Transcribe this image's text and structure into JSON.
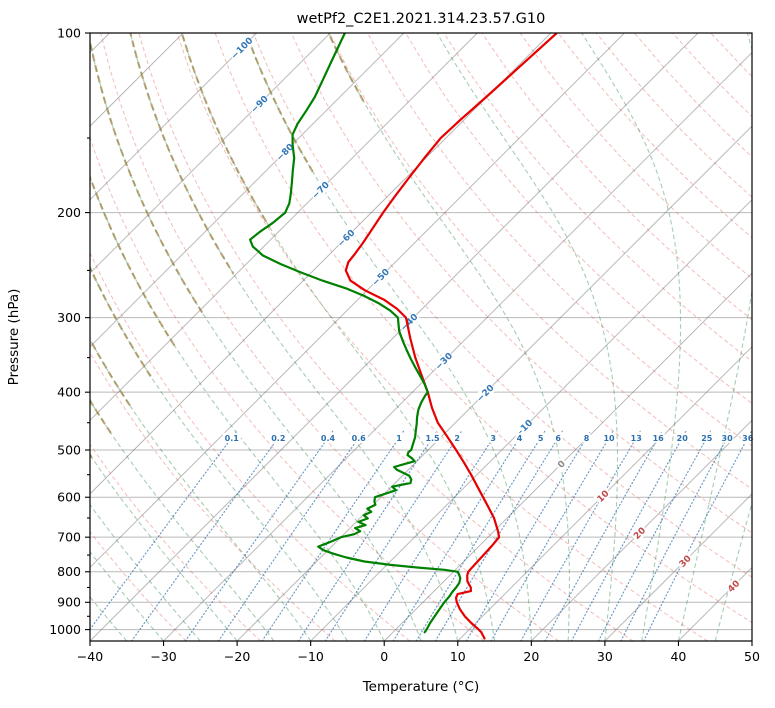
{
  "colors": {
    "grid": "rgba(100,100,100,0.45)",
    "dry_adiabat": "rgba(222,88,78,0.40)",
    "moist_adiabat": "rgba(38,128,62,0.40)",
    "moist_adiabat_cold_overlay": "rgba(158,134,72,0.72)",
    "mixing_ratio": "rgba(45,112,175,0.70)",
    "mixing_label": "#2d70af",
    "axis": "#000000",
    "background": "#ffffff"
  },
  "chart_data": {
    "type": "line",
    "subtype": "skew-t-log-p",
    "title": "wetPf2_C2E1.2021.314.23.57.G10",
    "xlabel": "Temperature (°C)",
    "ylabel": "Pressure (hPa)",
    "xlim": [
      -40,
      50
    ],
    "p_top": 100,
    "p_bottom": 1045,
    "skew_deg": 45,
    "x_ticks": [
      -40,
      -30,
      -20,
      -10,
      0,
      10,
      20,
      30,
      40,
      50
    ],
    "y_ticks": [
      100,
      200,
      300,
      400,
      500,
      600,
      700,
      800,
      900,
      1000
    ],
    "y_minor_ticks": [
      150,
      250,
      350,
      450,
      550,
      650,
      750,
      850,
      950
    ],
    "grid": true,
    "isotherms": {
      "start": -130,
      "end": 50,
      "step": 10
    },
    "isotherm_labels": [
      {
        "value": -100,
        "y": 48,
        "color": "#3478b6"
      },
      {
        "value": -90,
        "y": 104,
        "color": "#3478b6"
      },
      {
        "value": -80,
        "y": 152,
        "color": "#3478b6"
      },
      {
        "value": -70,
        "y": 190,
        "color": "#3478b6"
      },
      {
        "value": -60,
        "y": 238,
        "color": "#3478b6"
      },
      {
        "value": -50,
        "y": 277,
        "color": "#3478b6"
      },
      {
        "value": -40,
        "y": 322,
        "color": "#3478b6"
      },
      {
        "value": -30,
        "y": 361,
        "color": "#3478b6"
      },
      {
        "value": -20,
        "y": 393,
        "color": "#3478b6"
      },
      {
        "value": -10,
        "y": 428,
        "color": "#3478b6"
      },
      {
        "value": 0,
        "y": 464,
        "color": "#8a8a8a"
      },
      {
        "value": 10,
        "y": 496,
        "color": "#c04a4a"
      },
      {
        "value": 20,
        "y": 533,
        "color": "#c04a4a"
      },
      {
        "value": 30,
        "y": 561,
        "color": "#c04a4a"
      },
      {
        "value": 40,
        "y": 586,
        "color": "#c04a4a"
      }
    ],
    "dry_adiabats": {
      "start": -30,
      "end": 190,
      "step": 10
    },
    "moist_adiabats": {
      "start": -40,
      "end": 45,
      "step": 5
    },
    "mixing_ratio": {
      "values": [
        0.1,
        0.2,
        0.4,
        0.6,
        1,
        1.5,
        2,
        3,
        4,
        5,
        6,
        8,
        10,
        13,
        16,
        20,
        25,
        30,
        36
      ],
      "label_pressure": 477,
      "top_pressure": 462
    },
    "series": [
      {
        "name": "temperature",
        "color": "#e60000",
        "width": 2.2,
        "points": [
          [
            1035,
            13.3
          ],
          [
            1010,
            12.0
          ],
          [
            1000,
            11.3
          ],
          [
            975,
            9.4
          ],
          [
            950,
            7.6
          ],
          [
            925,
            6.0
          ],
          [
            900,
            4.6
          ],
          [
            885,
            3.9
          ],
          [
            872,
            3.6
          ],
          [
            862,
            5.0
          ],
          [
            850,
            4.5
          ],
          [
            830,
            3.2
          ],
          [
            812,
            2.4
          ],
          [
            800,
            2.0
          ],
          [
            775,
            1.9
          ],
          [
            750,
            1.8
          ],
          [
            725,
            1.7
          ],
          [
            700,
            1.5
          ],
          [
            685,
            0.6
          ],
          [
            670,
            -0.4
          ],
          [
            650,
            -1.8
          ],
          [
            625,
            -3.9
          ],
          [
            600,
            -6.1
          ],
          [
            575,
            -8.4
          ],
          [
            550,
            -10.8
          ],
          [
            525,
            -13.4
          ],
          [
            500,
            -16.2
          ],
          [
            475,
            -19.2
          ],
          [
            450,
            -22.4
          ],
          [
            425,
            -25.2
          ],
          [
            400,
            -27.9
          ],
          [
            375,
            -31.0
          ],
          [
            350,
            -34.3
          ],
          [
            325,
            -37.6
          ],
          [
            300,
            -41.0
          ],
          [
            290,
            -43.4
          ],
          [
            280,
            -46.4
          ],
          [
            270,
            -50.3
          ],
          [
            260,
            -53.6
          ],
          [
            250,
            -55.6
          ],
          [
            242,
            -56.4
          ],
          [
            235,
            -56.6
          ],
          [
            225,
            -57.0
          ],
          [
            212,
            -57.7
          ],
          [
            200,
            -58.4
          ],
          [
            188,
            -59.0
          ],
          [
            175,
            -59.6
          ],
          [
            162,
            -60.2
          ],
          [
            150,
            -60.7
          ],
          [
            140,
            -60.5
          ],
          [
            128,
            -60.1
          ],
          [
            115,
            -59.7
          ],
          [
            100,
            -59.2
          ]
        ]
      },
      {
        "name": "dewpoint",
        "color": "#008000",
        "width": 2.2,
        "points": [
          [
            1010,
            4.3
          ],
          [
            1000,
            4.2
          ],
          [
            975,
            3.8
          ],
          [
            950,
            3.5
          ],
          [
            925,
            3.2
          ],
          [
            900,
            2.9
          ],
          [
            880,
            2.8
          ],
          [
            865,
            2.6
          ],
          [
            850,
            2.5
          ],
          [
            835,
            2.3
          ],
          [
            820,
            1.8
          ],
          [
            808,
            1.1
          ],
          [
            800,
            0.6
          ],
          [
            794,
            -1.5
          ],
          [
            787,
            -5.5
          ],
          [
            779,
            -9.5
          ],
          [
            769,
            -13.5
          ],
          [
            757,
            -16.5
          ],
          [
            746,
            -18.8
          ],
          [
            736,
            -20.6
          ],
          [
            726,
            -21.8
          ],
          [
            718,
            -21.2
          ],
          [
            710,
            -20.6
          ],
          [
            700,
            -20.0
          ],
          [
            692,
            -18.6
          ],
          [
            684,
            -18.2
          ],
          [
            676,
            -19.3
          ],
          [
            668,
            -18.3
          ],
          [
            660,
            -19.7
          ],
          [
            651,
            -18.9
          ],
          [
            643,
            -19.9
          ],
          [
            635,
            -19.3
          ],
          [
            627,
            -20.3
          ],
          [
            618,
            -19.7
          ],
          [
            610,
            -20.3
          ],
          [
            600,
            -20.8
          ],
          [
            592,
            -19.9
          ],
          [
            584,
            -18.9
          ],
          [
            576,
            -19.9
          ],
          [
            568,
            -17.9
          ],
          [
            560,
            -18.3
          ],
          [
            552,
            -19.1
          ],
          [
            546,
            -20.3
          ],
          [
            540,
            -21.5
          ],
          [
            534,
            -22.3
          ],
          [
            528,
            -21.3
          ],
          [
            522,
            -20.3
          ],
          [
            516,
            -21.1
          ],
          [
            510,
            -22.1
          ],
          [
            504,
            -22.4
          ],
          [
            500,
            -22.3
          ],
          [
            488,
            -22.9
          ],
          [
            476,
            -23.5
          ],
          [
            464,
            -24.3
          ],
          [
            452,
            -25.1
          ],
          [
            440,
            -26.0
          ],
          [
            428,
            -26.8
          ],
          [
            416,
            -27.4
          ],
          [
            405,
            -27.8
          ],
          [
            400,
            -27.9
          ],
          [
            388,
            -29.4
          ],
          [
            376,
            -31.1
          ],
          [
            364,
            -32.9
          ],
          [
            352,
            -34.7
          ],
          [
            340,
            -36.5
          ],
          [
            328,
            -38.3
          ],
          [
            316,
            -40.1
          ],
          [
            304,
            -41.6
          ],
          [
            300,
            -42.1
          ],
          [
            292,
            -44.1
          ],
          [
            284,
            -46.6
          ],
          [
            276,
            -49.6
          ],
          [
            268,
            -53.1
          ],
          [
            260,
            -57.4
          ],
          [
            252,
            -61.4
          ],
          [
            244,
            -65.3
          ],
          [
            236,
            -68.9
          ],
          [
            228,
            -71.5
          ],
          [
            222,
            -72.8
          ],
          [
            215,
            -72.5
          ],
          [
            208,
            -72.0
          ],
          [
            200,
            -71.7
          ],
          [
            193,
            -72.4
          ],
          [
            186,
            -73.5
          ],
          [
            178,
            -74.9
          ],
          [
            170,
            -76.4
          ],
          [
            162,
            -77.9
          ],
          [
            154,
            -79.9
          ],
          [
            148,
            -81.3
          ],
          [
            142,
            -82.1
          ],
          [
            135,
            -82.7
          ],
          [
            128,
            -83.4
          ],
          [
            120,
            -84.6
          ],
          [
            112,
            -85.9
          ],
          [
            105,
            -87.1
          ],
          [
            100,
            -88.0
          ]
        ]
      }
    ]
  }
}
